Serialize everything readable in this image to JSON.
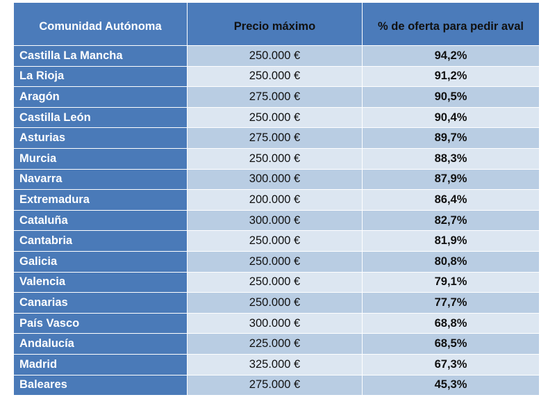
{
  "table": {
    "headers": [
      "Comunidad Autónoma",
      "Precio máximo",
      "% de oferta para pedir aval"
    ],
    "rows": [
      [
        "Castilla La Mancha",
        "250.000 €",
        "94,2%"
      ],
      [
        "La Rioja",
        "250.000 €",
        "91,2%"
      ],
      [
        "Aragón",
        "275.000 €",
        "90,5%"
      ],
      [
        "Castilla León",
        "250.000 €",
        "90,4%"
      ],
      [
        "Asturias",
        "275.000 €",
        "89,7%"
      ],
      [
        "Murcia",
        "250.000 €",
        "88,3%"
      ],
      [
        "Navarra",
        "300.000 €",
        "87,9%"
      ],
      [
        "Extremadura",
        "200.000 €",
        "86,4%"
      ],
      [
        "Cataluña",
        "300.000 €",
        "82,7%"
      ],
      [
        "Cantabria",
        "250.000 €",
        "81,9%"
      ],
      [
        "Galicia",
        "250.000 €",
        "80,8%"
      ],
      [
        "Valencia",
        "250.000 €",
        "79,1%"
      ],
      [
        "Canarias",
        "250.000 €",
        "77,7%"
      ],
      [
        "País Vasco",
        "300.000 €",
        "68,8%"
      ],
      [
        "Andalucía",
        "225.000 €",
        "68,5%"
      ],
      [
        "Madrid",
        "325.000 €",
        "67,3%"
      ],
      [
        "Baleares",
        "275.000 €",
        "45,3%"
      ]
    ]
  },
  "colors": {
    "header_bg": "#4b7bba",
    "first_col_bg": "#4a7ab8",
    "row_odd_bg": "#b9cde3",
    "row_even_bg": "#dce6f1"
  }
}
